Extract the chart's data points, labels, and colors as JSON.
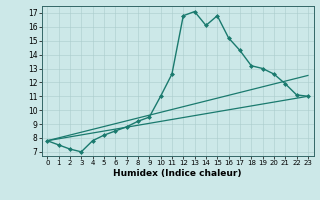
{
  "title": "",
  "xlabel": "Humidex (Indice chaleur)",
  "background_color": "#cce8e8",
  "line_color": "#1a7a6e",
  "xlim": [
    -0.5,
    23.5
  ],
  "ylim": [
    6.7,
    17.5
  ],
  "yticks": [
    7,
    8,
    9,
    10,
    11,
    12,
    13,
    14,
    15,
    16,
    17
  ],
  "xticks": [
    0,
    1,
    2,
    3,
    4,
    5,
    6,
    7,
    8,
    9,
    10,
    11,
    12,
    13,
    14,
    15,
    16,
    17,
    18,
    19,
    20,
    21,
    22,
    23
  ],
  "lines": [
    {
      "x": [
        0,
        1,
        2,
        3,
        4,
        5,
        6,
        7,
        8,
        9,
        10,
        11,
        12,
        13,
        14,
        15,
        16,
        17,
        18,
        19,
        20,
        21,
        22,
        23
      ],
      "y": [
        7.8,
        7.5,
        7.2,
        7.0,
        7.8,
        8.2,
        8.5,
        8.8,
        9.2,
        9.5,
        11.0,
        12.6,
        16.8,
        17.1,
        16.1,
        16.8,
        15.2,
        14.3,
        13.2,
        13.0,
        12.6,
        11.9,
        11.1,
        11.0
      ],
      "marker": "D",
      "markersize": 2.0,
      "linewidth": 1.0
    },
    {
      "x": [
        0,
        23
      ],
      "y": [
        7.8,
        12.5
      ],
      "marker": null,
      "linewidth": 0.9
    },
    {
      "x": [
        0,
        23
      ],
      "y": [
        7.8,
        11.0
      ],
      "marker": null,
      "linewidth": 0.9
    }
  ]
}
